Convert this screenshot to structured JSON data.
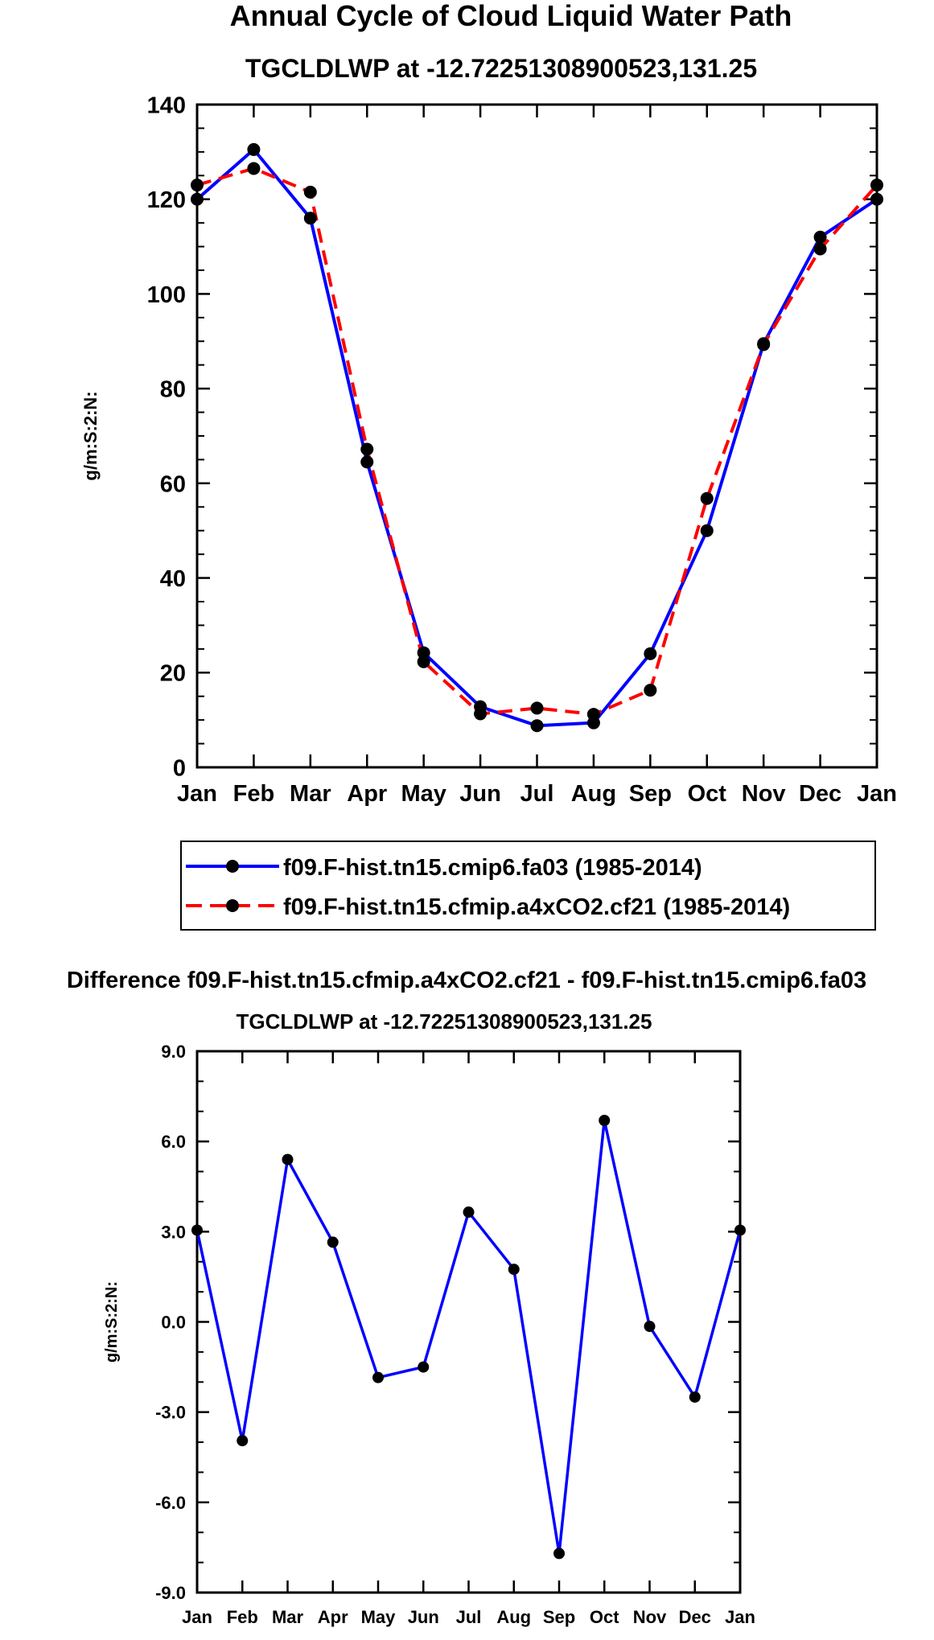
{
  "chart_data": [
    {
      "type": "line",
      "title": "Annual Cycle of Cloud Liquid Water Path",
      "subtitle": "TGCLDLWP at -12.72251308900523,131.25",
      "ylabel": "g/m:S:2:N:",
      "xlabel": "",
      "ylim": [
        0,
        140
      ],
      "yticks": [
        "0",
        "20",
        "40",
        "60",
        "80",
        "100",
        "120",
        "140"
      ],
      "ytick_values": [
        0,
        20,
        40,
        60,
        80,
        100,
        120,
        140
      ],
      "categories": [
        "Jan",
        "Feb",
        "Mar",
        "Apr",
        "May",
        "Jun",
        "Jul",
        "Aug",
        "Sep",
        "Oct",
        "Nov",
        "Dec",
        "Jan"
      ],
      "series": [
        {
          "name": "f09.F-hist.tn15.cmip6.fa03 (1985-2014)",
          "color": "#0000ff",
          "dash": "solid",
          "values": [
            120.0,
            130.5,
            116.0,
            64.5,
            24.2,
            12.8,
            8.8,
            9.4,
            24.0,
            50.0,
            89.5,
            112.0,
            120.0
          ]
        },
        {
          "name": "f09.F-hist.tn15.cfmip.a4xCO2.cf21 (1985-2014)",
          "color": "#ff0000",
          "dash": "dashed",
          "values": [
            123.0,
            126.5,
            121.5,
            67.2,
            22.3,
            11.3,
            12.5,
            11.2,
            16.3,
            56.8,
            89.3,
            109.5,
            123.0
          ]
        }
      ],
      "legend_position": "below"
    },
    {
      "type": "line",
      "title": "Difference f09.F-hist.tn15.cfmip.a4xCO2.cf21 - f09.F-hist.tn15.cmip6.fa03",
      "subtitle": "TGCLDLWP at -12.72251308900523,131.25",
      "ylabel": "g/m:S:2:N:",
      "xlabel": "",
      "ylim": [
        -9,
        9
      ],
      "yticks": [
        "-9.0",
        "-6.0",
        "-3.0",
        "0.0",
        "3.0",
        "6.0",
        "9.0"
      ],
      "ytick_values": [
        -9,
        -6,
        -3,
        0,
        3,
        6,
        9
      ],
      "categories": [
        "Jan",
        "Feb",
        "Mar",
        "Apr",
        "May",
        "Jun",
        "Jul",
        "Aug",
        "Sep",
        "Oct",
        "Nov",
        "Dec",
        "Jan"
      ],
      "series": [
        {
          "name": "Difference",
          "color": "#0000ff",
          "dash": "solid",
          "values": [
            3.05,
            -3.95,
            5.4,
            2.65,
            -1.85,
            -1.5,
            3.65,
            1.75,
            -7.7,
            6.7,
            -0.15,
            -2.5,
            3.05
          ]
        }
      ]
    }
  ]
}
